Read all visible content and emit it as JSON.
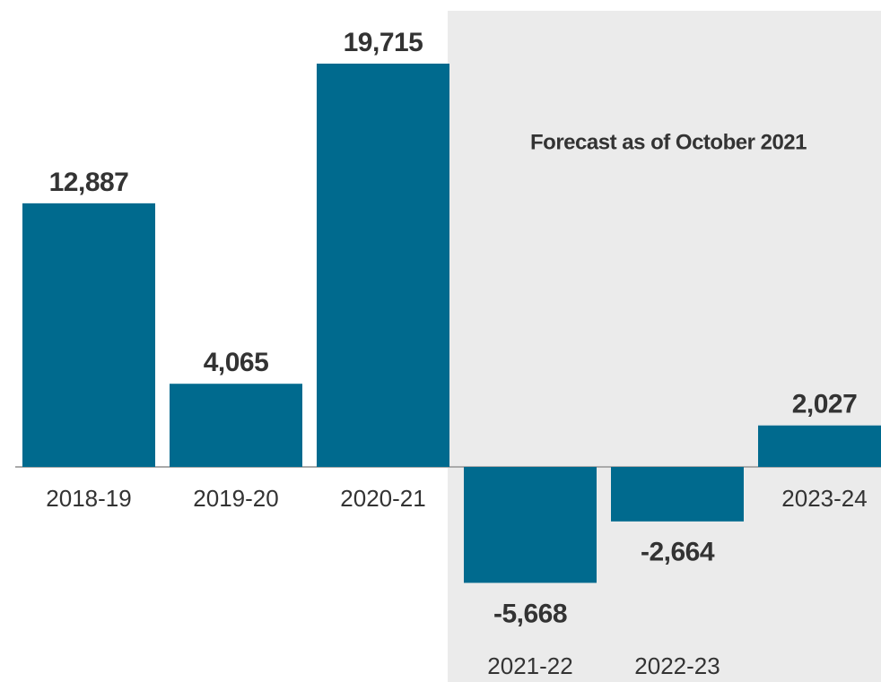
{
  "chart_data": {
    "type": "bar",
    "categories": [
      "2018-19",
      "2019-20",
      "2020-21",
      "2021-22",
      "2022-23",
      "2023-24"
    ],
    "values": [
      12887,
      4065,
      19715,
      -5668,
      -2664,
      2027
    ],
    "value_labels": [
      "12,887",
      "4,065",
      "19,715",
      "-5,668",
      "-2,664",
      "2,027"
    ],
    "color": "#006a8e",
    "annotation": "Forecast as of October 2021",
    "shaded_from": "2021-22",
    "shade_color": "#ebebeb"
  }
}
